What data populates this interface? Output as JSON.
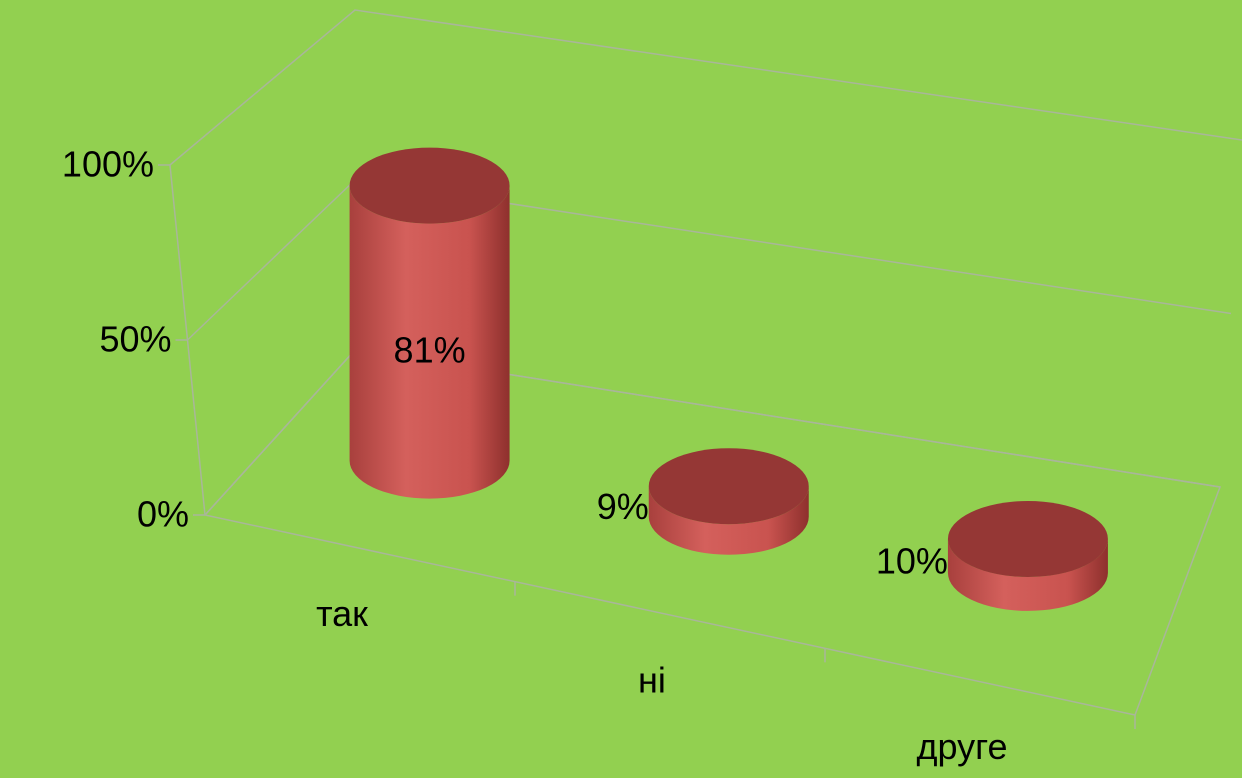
{
  "chart_data": {
    "type": "bar",
    "bar_shape": "cylinder",
    "categories": [
      "так",
      "ні",
      "друге"
    ],
    "values": [
      81,
      9,
      10
    ],
    "value_labels": [
      "81%",
      "9%",
      "10%"
    ],
    "color": "#c0504d",
    "top_color": "#953735",
    "background": "#92d050",
    "ylim": [
      0,
      100
    ],
    "yticks": [
      {
        "value": 0,
        "label": "0%"
      },
      {
        "value": 50,
        "label": "50%"
      },
      {
        "value": 100,
        "label": "100%"
      }
    ],
    "grid": true
  }
}
